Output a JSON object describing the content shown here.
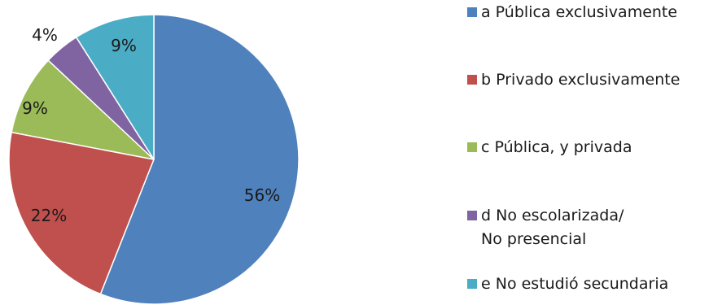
{
  "chart_data": {
    "type": "pie",
    "title": "",
    "start_angle_deg": 0,
    "direction": "clockwise",
    "legend_position": "right",
    "slices": [
      {
        "key": "a",
        "legend": "a Pública exclusivamente",
        "value": 56,
        "label": "56%",
        "color": "#4F81BD"
      },
      {
        "key": "b",
        "legend": "b Privado exclusivamente",
        "value": 22,
        "label": "22%",
        "color": "#C0504D"
      },
      {
        "key": "c",
        "legend": "c Pública, y privada",
        "value": 9,
        "label": "9%",
        "color": "#9BBB59"
      },
      {
        "key": "d",
        "legend": "d No escolarizada/ No presencial",
        "value": 4,
        "label": "4%",
        "color": "#8064A2"
      },
      {
        "key": "e",
        "legend": "e No estudió secundaria",
        "value": 9,
        "label": "9%",
        "color": "#4BACC6"
      }
    ]
  }
}
